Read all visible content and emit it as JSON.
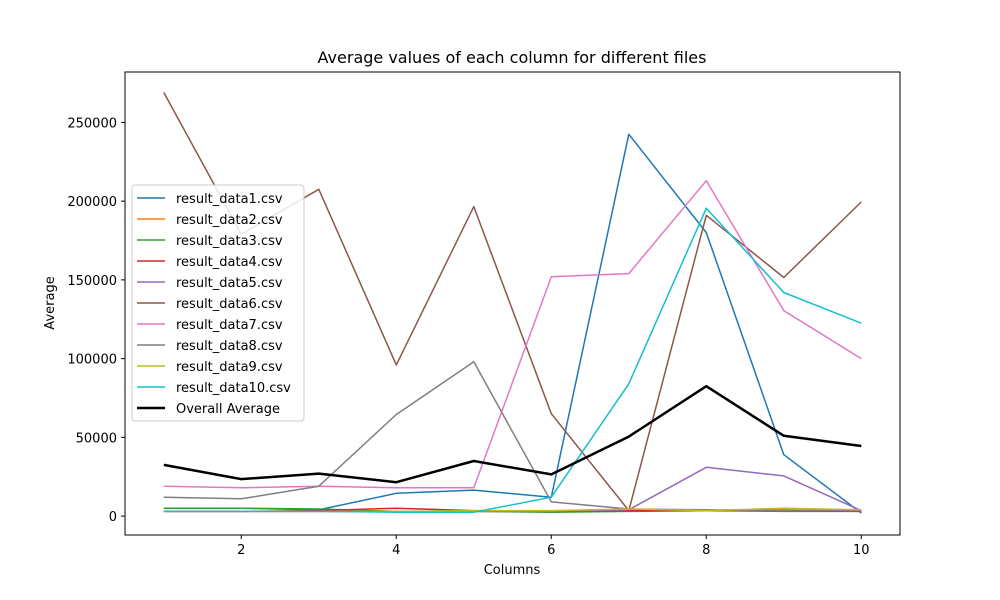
{
  "chart_data": {
    "type": "line",
    "title": "Average values of each column for different files",
    "xlabel": "Columns",
    "ylabel": "Average",
    "xlim": [
      0.5,
      10.5
    ],
    "ylim": [
      -12000,
      282000
    ],
    "xticks": [
      2,
      4,
      6,
      8,
      10
    ],
    "yticks": [
      0,
      50000,
      100000,
      150000,
      200000,
      250000
    ],
    "grid": false,
    "legend_position": "center-left",
    "x": [
      1,
      2,
      3,
      4,
      5,
      6,
      7,
      8,
      9,
      10
    ],
    "series": [
      {
        "name": "result_data1.csv",
        "color": "#1f77b4",
        "values": [
          5000,
          5000,
          4000,
          14500,
          16500,
          12000,
          242500,
          180000,
          39000,
          2000
        ]
      },
      {
        "name": "result_data2.csv",
        "color": "#ff7f0e",
        "values": [
          3000,
          3000,
          3000,
          3000,
          3000,
          3000,
          3500,
          3500,
          4000,
          3500
        ]
      },
      {
        "name": "result_data3.csv",
        "color": "#2ca02c",
        "values": [
          5000,
          5000,
          4500,
          3000,
          3000,
          2500,
          3000,
          3500,
          3000,
          3000
        ]
      },
      {
        "name": "result_data4.csv",
        "color": "#d62728",
        "values": [
          3000,
          3000,
          3500,
          5000,
          3500,
          3000,
          3500,
          3500,
          3500,
          3000
        ]
      },
      {
        "name": "result_data5.csv",
        "color": "#9467bd",
        "values": [
          3000,
          3000,
          3000,
          3000,
          3000,
          3000,
          4000,
          31000,
          25500,
          3500
        ]
      },
      {
        "name": "result_data6.csv",
        "color": "#8c564b",
        "values": [
          269000,
          179000,
          207500,
          96000,
          196500,
          65000,
          3500,
          191000,
          151500,
          199500
        ]
      },
      {
        "name": "result_data7.csv",
        "color": "#e377c2",
        "values": [
          19000,
          18000,
          19000,
          18000,
          18000,
          152000,
          154000,
          213000,
          130500,
          100000
        ]
      },
      {
        "name": "result_data8.csv",
        "color": "#7f7f7f",
        "values": [
          12000,
          11000,
          19000,
          64500,
          98000,
          9000,
          4500,
          4000,
          3500,
          3500
        ]
      },
      {
        "name": "result_data9.csv",
        "color": "#bcbd22",
        "values": [
          3000,
          3000,
          3000,
          3000,
          3500,
          3500,
          4500,
          3500,
          5000,
          4000
        ]
      },
      {
        "name": "result_data10.csv",
        "color": "#17becf",
        "values": [
          3000,
          3000,
          3000,
          2500,
          2500,
          12000,
          84000,
          195500,
          142000,
          122500
        ]
      },
      {
        "name": "Overall Average",
        "color": "#000000",
        "values": [
          32500,
          23500,
          27000,
          21500,
          35000,
          26500,
          50500,
          82500,
          51000,
          44500
        ]
      }
    ]
  }
}
